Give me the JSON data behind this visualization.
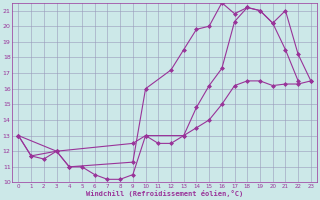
{
  "background_color": "#cce8e8",
  "grid_color": "#9999bb",
  "line_color": "#993399",
  "marker": "D",
  "markersize": 2.0,
  "linewidth": 0.8,
  "xlim": [
    -0.5,
    23.5
  ],
  "ylim": [
    10,
    21.5
  ],
  "xtick_vals": [
    0,
    1,
    2,
    3,
    4,
    5,
    6,
    7,
    8,
    9,
    10,
    11,
    12,
    13,
    14,
    15,
    16,
    17,
    18,
    19,
    20,
    21,
    22,
    23
  ],
  "ytick_vals": [
    10,
    11,
    12,
    13,
    14,
    15,
    16,
    17,
    18,
    19,
    20,
    21
  ],
  "xlabel": "Windchill (Refroidissement éolien,°C)",
  "line1_x": [
    0,
    1,
    2,
    3,
    4,
    5,
    6,
    7,
    8,
    9,
    10,
    11,
    12,
    13,
    14,
    15,
    16,
    17,
    18,
    19,
    20,
    21,
    22,
    23
  ],
  "line1_y": [
    13.0,
    11.7,
    11.5,
    12.0,
    11.0,
    11.0,
    10.5,
    10.2,
    10.2,
    10.5,
    13.0,
    12.5,
    12.5,
    13.0,
    13.5,
    14.0,
    15.0,
    16.2,
    16.5,
    16.5,
    16.2,
    16.3,
    16.3,
    16.5
  ],
  "line2_x": [
    0,
    1,
    3,
    4,
    9,
    10,
    12,
    13,
    14,
    15,
    16,
    17,
    18,
    19,
    20,
    21,
    22
  ],
  "line2_y": [
    13.0,
    11.7,
    12.0,
    11.0,
    11.3,
    16.0,
    17.2,
    18.5,
    19.8,
    20.0,
    21.5,
    20.8,
    21.2,
    21.0,
    20.2,
    18.5,
    16.5
  ],
  "line3_x": [
    0,
    3,
    9,
    10,
    13,
    14,
    15,
    16,
    17,
    18,
    19,
    20,
    21,
    22,
    23
  ],
  "line3_y": [
    13.0,
    12.0,
    12.5,
    13.0,
    13.0,
    14.8,
    16.2,
    17.3,
    20.3,
    21.2,
    21.0,
    20.2,
    21.0,
    18.2,
    16.5
  ]
}
